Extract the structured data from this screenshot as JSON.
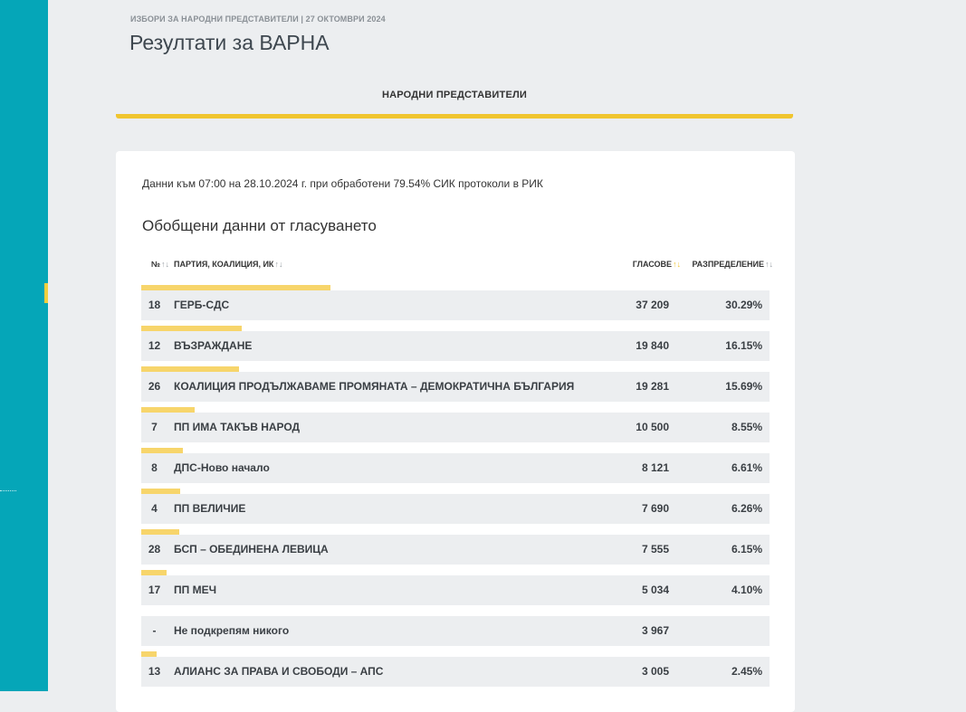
{
  "header": {
    "election": "ИЗБОРИ ЗА НАРОДНИ ПРЕДСТАВИТЕЛИ | 27 ОКТОМВРИ 2024",
    "title": "Резултати за ВАРНА",
    "tab_label": "НАРОДНИ ПРЕДСТАВИТЕЛИ"
  },
  "card": {
    "info": "Данни към 07:00 на 28.10.2024 г. при обработени 79.54% СИК протоколи в РИК",
    "section_title": "Обобщени данни от гласуването"
  },
  "table": {
    "columns": {
      "number": "№",
      "party": "ПАРТИЯ, КОАЛИЦИЯ, ИК",
      "votes": "ГЛАСОВЕ",
      "distribution": "РАЗПРЕДЕЛЕНИЕ"
    },
    "sort_icon": "↑↓",
    "rows": [
      {
        "no": "18",
        "party": "ГЕРБ-СДС",
        "votes": "37 209",
        "pct": "30.29%",
        "share": 30.29
      },
      {
        "no": "12",
        "party": "ВЪЗРАЖДАНЕ",
        "votes": "19 840",
        "pct": "16.15%",
        "share": 16.15
      },
      {
        "no": "26",
        "party": "КОАЛИЦИЯ ПРОДЪЛЖАВАМЕ ПРОМЯНАТА – ДЕМОКРАТИЧНА БЪЛГАРИЯ",
        "votes": "19 281",
        "pct": "15.69%",
        "share": 15.69
      },
      {
        "no": "7",
        "party": "ПП ИМА ТАКЪВ НАРОД",
        "votes": "10 500",
        "pct": "8.55%",
        "share": 8.55
      },
      {
        "no": "8",
        "party": "ДПС-Ново начало",
        "votes": "8 121",
        "pct": "6.61%",
        "share": 6.61
      },
      {
        "no": "4",
        "party": "ПП ВЕЛИЧИЕ",
        "votes": "7 690",
        "pct": "6.26%",
        "share": 6.26
      },
      {
        "no": "28",
        "party": "БСП – ОБЕДИНЕНА ЛЕВИЦА",
        "votes": "7 555",
        "pct": "6.15%",
        "share": 6.15
      },
      {
        "no": "17",
        "party": "ПП МЕЧ",
        "votes": "5 034",
        "pct": "4.10%",
        "share": 4.1
      },
      {
        "no": "-",
        "party": "Не подкрепям никого",
        "votes": "3 967",
        "pct": "",
        "share": 0
      },
      {
        "no": "13",
        "party": "АЛИАНС ЗА ПРАВА И СВОБОДИ – АПС",
        "votes": "3 005",
        "pct": "2.45%",
        "share": 2.45
      }
    ]
  },
  "colors": {
    "sidebar": "#05a6b8",
    "accent": "#f0c52f",
    "bar": "#f7d56b",
    "row_bg": "#eceef0"
  }
}
